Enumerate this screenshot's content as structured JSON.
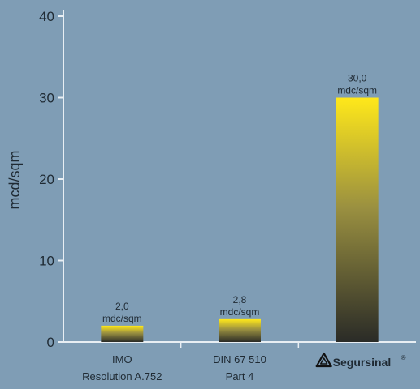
{
  "colors": {
    "background": "#7f9db5",
    "axis": "#e8eef3",
    "text": "#1f2a33",
    "bar_top": "#ffe81a",
    "bar_mid": "#9a9040",
    "bar_bottom": "#2a2b27"
  },
  "chart_data": {
    "type": "bar",
    "title": "",
    "xlabel": "",
    "ylabel": "mcd/sqm",
    "ylim": [
      0,
      40
    ],
    "yticks": [
      0,
      10,
      20,
      30,
      40
    ],
    "grid": false,
    "categories": [
      {
        "line1": "IMO",
        "line2": "Resolution A.752"
      },
      {
        "line1": "DIN 67 510",
        "line2": "Part 4"
      },
      {
        "logo": "Segursinal",
        "logo_icon": "warning-triangle-icon",
        "registered": "®"
      }
    ],
    "values": [
      2.0,
      2.8,
      30.0
    ],
    "data_labels": [
      {
        "value": "2,0",
        "unit": "mdc/sqm"
      },
      {
        "value": "2,8",
        "unit": "mdc/sqm"
      },
      {
        "value": "30,0",
        "unit": "mdc/sqm"
      }
    ]
  }
}
